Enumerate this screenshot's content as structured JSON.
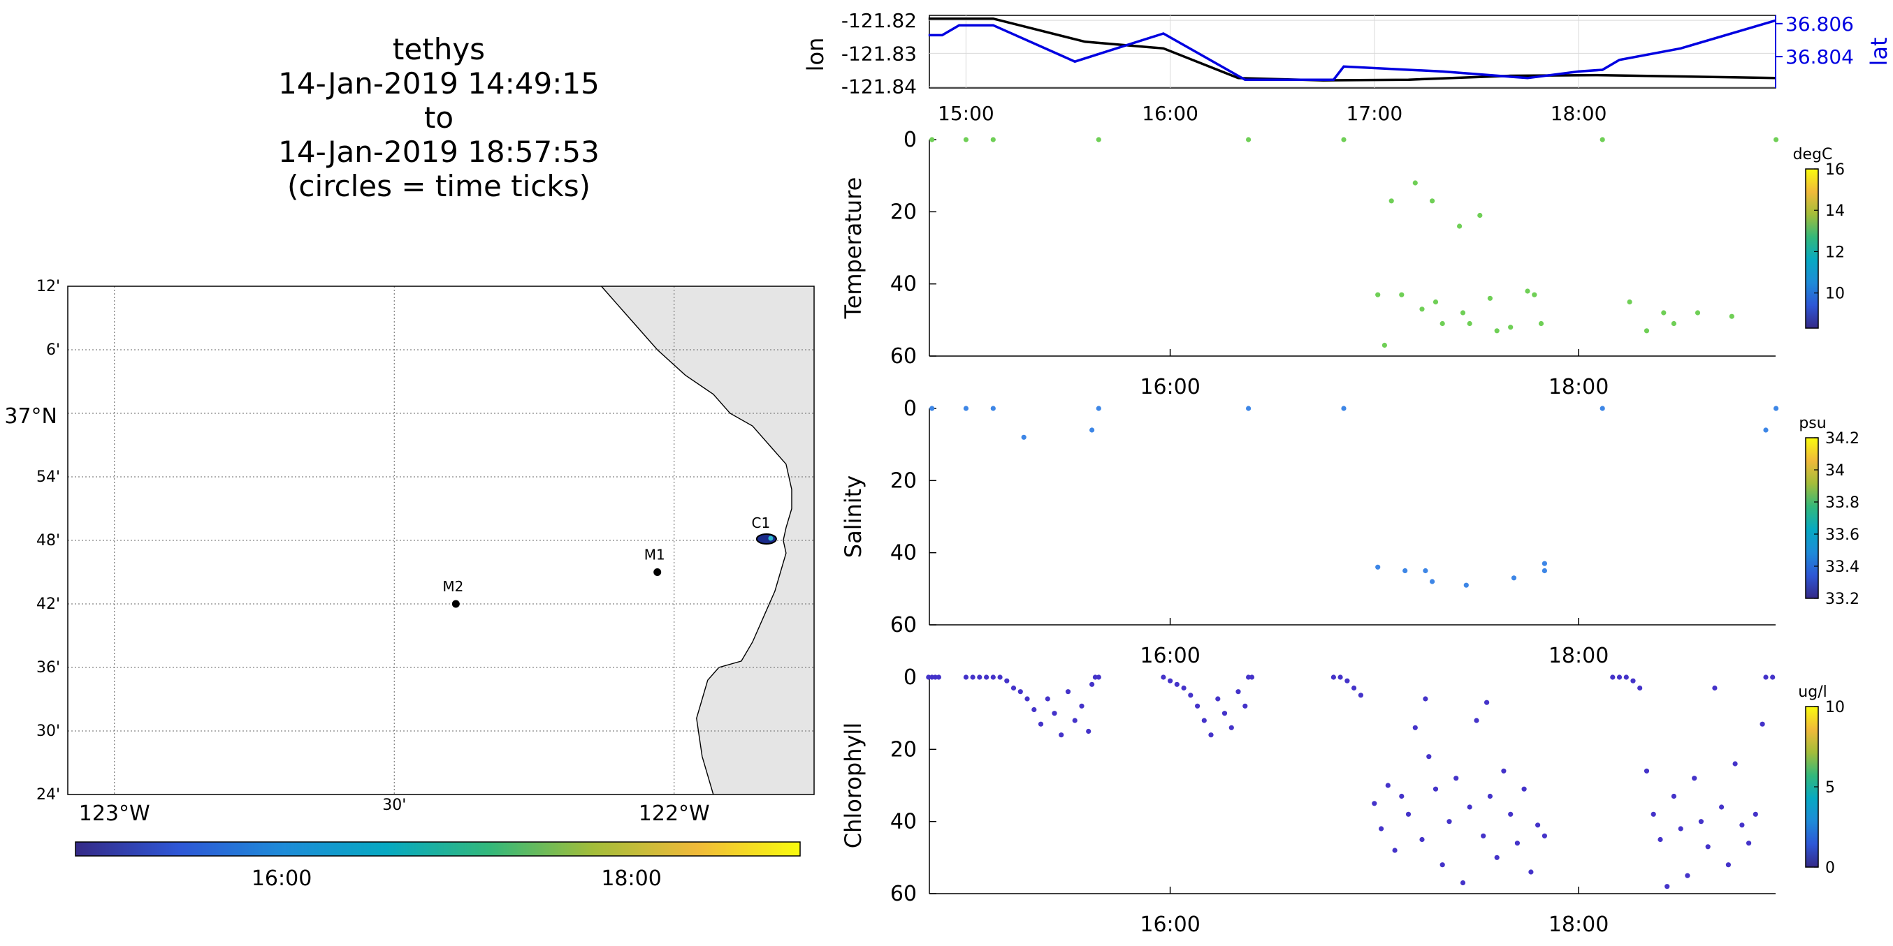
{
  "title_lines": [
    "tethys",
    "14-Jan-2019 14:49:15",
    "to",
    "14-Jan-2019 18:57:53",
    "(circles = time ticks)"
  ],
  "colors": {
    "track_lon": "#000000",
    "track_lat": "#0000e0",
    "temperature_pts": "#6fcf56",
    "salinity_pts": "#3d86e6",
    "chlorophyll_pts": "#4433c9",
    "land": "#e5e5e5",
    "parula": [
      "#352a87",
      "#2e57d6",
      "#1e8bd8",
      "#07a9c2",
      "#33b87b",
      "#a3bd3a",
      "#f0ba3a",
      "#f9fb0e"
    ]
  },
  "map": {
    "lat_labels": [
      "12'",
      "6'",
      "37°N",
      "54'",
      "48'",
      "42'",
      "36'",
      "30'",
      "24'"
    ],
    "lon_labels": [
      "123°W",
      "30'",
      "122°W"
    ],
    "stations": [
      {
        "name": "M2",
        "lon": -122.39,
        "lat": 36.7
      },
      {
        "name": "M1",
        "lon": -122.03,
        "lat": 36.75
      },
      {
        "name": "C1",
        "lon": -121.84,
        "lat": 36.8
      }
    ],
    "time_colorbar_ticks": [
      "16:00",
      "18:00"
    ]
  },
  "chart_data": [
    {
      "type": "line",
      "title": "",
      "xlabel": "",
      "ylabel": "lon",
      "ylabel_right": "lat",
      "x_ticks": [
        "15:00",
        "16:00",
        "17:00",
        "18:00"
      ],
      "xlim": [
        "14:49:15",
        "18:57:53"
      ],
      "ylim": [
        -121.8405,
        -121.8185
      ],
      "y_ticks": [
        -121.82,
        -121.83,
        -121.84
      ],
      "y2lim": [
        36.8021,
        36.8065
      ],
      "y2_ticks": [
        36.806,
        36.804
      ],
      "series": [
        {
          "name": "lon",
          "axis": "left",
          "x": [
            "14:49",
            "15:08",
            "15:35",
            "15:58",
            "16:20",
            "16:45",
            "17:10",
            "17:40",
            "18:05",
            "18:30",
            "18:58"
          ],
          "y": [
            -121.8195,
            -121.8195,
            -121.8265,
            -121.8285,
            -121.8375,
            -121.8382,
            -121.838,
            -121.8368,
            -121.8366,
            -121.837,
            -121.8375
          ]
        },
        {
          "name": "lat",
          "axis": "right",
          "x": [
            "14:49",
            "14:53",
            "14:58",
            "15:08",
            "15:32",
            "15:58",
            "16:22",
            "16:30",
            "16:40",
            "16:48",
            "16:51",
            "17:20",
            "17:45",
            "18:00",
            "18:07",
            "18:12",
            "18:30",
            "18:58"
          ],
          "y": [
            36.8053,
            36.8053,
            36.8059,
            36.8059,
            36.8037,
            36.8054,
            36.8026,
            36.8026,
            36.8026,
            36.8026,
            36.8034,
            36.8031,
            36.8027,
            36.8031,
            36.8032,
            36.8038,
            36.8045,
            36.8062
          ]
        }
      ]
    },
    {
      "type": "scatter",
      "title": "",
      "ylabel": "Temperature",
      "units": "degC",
      "xlabel": "",
      "x_ticks": [
        "16:00",
        "18:00"
      ],
      "xlim": [
        "14:49:15",
        "18:57:53"
      ],
      "ylim": [
        60,
        0
      ],
      "y_ticks": [
        0,
        20,
        40,
        60
      ],
      "colorbar_ticks": [
        16,
        14,
        12,
        10
      ],
      "points": [
        {
          "x": "14:50",
          "y": 0
        },
        {
          "x": "15:00",
          "y": 0
        },
        {
          "x": "15:08",
          "y": 0
        },
        {
          "x": "15:39",
          "y": 0
        },
        {
          "x": "16:23",
          "y": 0
        },
        {
          "x": "16:51",
          "y": 0
        },
        {
          "x": "18:07",
          "y": 0
        },
        {
          "x": "18:58",
          "y": 0
        },
        {
          "x": "17:05",
          "y": 17
        },
        {
          "x": "17:12",
          "y": 12
        },
        {
          "x": "17:17",
          "y": 17
        },
        {
          "x": "17:25",
          "y": 24
        },
        {
          "x": "17:31",
          "y": 21
        },
        {
          "x": "17:01",
          "y": 43
        },
        {
          "x": "17:08",
          "y": 43
        },
        {
          "x": "17:14",
          "y": 47
        },
        {
          "x": "17:18",
          "y": 45
        },
        {
          "x": "17:20",
          "y": 51
        },
        {
          "x": "17:26",
          "y": 48
        },
        {
          "x": "17:28",
          "y": 51
        },
        {
          "x": "17:34",
          "y": 44
        },
        {
          "x": "17:36",
          "y": 53
        },
        {
          "x": "17:40",
          "y": 52
        },
        {
          "x": "17:45",
          "y": 42
        },
        {
          "x": "17:47",
          "y": 43
        },
        {
          "x": "17:49",
          "y": 51
        },
        {
          "x": "17:03",
          "y": 57
        },
        {
          "x": "18:15",
          "y": 45
        },
        {
          "x": "18:20",
          "y": 53
        },
        {
          "x": "18:25",
          "y": 48
        },
        {
          "x": "18:28",
          "y": 51
        },
        {
          "x": "18:35",
          "y": 48
        },
        {
          "x": "18:45",
          "y": 49
        }
      ]
    },
    {
      "type": "scatter",
      "title": "",
      "ylabel": "Salinity",
      "units": "psu",
      "xlabel": "",
      "x_ticks": [
        "16:00",
        "18:00"
      ],
      "xlim": [
        "14:49:15",
        "18:57:53"
      ],
      "ylim": [
        60,
        0
      ],
      "y_ticks": [
        0,
        20,
        40,
        60
      ],
      "colorbar_ticks": [
        34.2,
        34,
        33.8,
        33.6,
        33.4,
        33.2
      ],
      "points": [
        {
          "x": "14:50",
          "y": 0
        },
        {
          "x": "15:00",
          "y": 0
        },
        {
          "x": "15:08",
          "y": 0
        },
        {
          "x": "15:39",
          "y": 0
        },
        {
          "x": "16:23",
          "y": 0
        },
        {
          "x": "16:51",
          "y": 0
        },
        {
          "x": "18:07",
          "y": 0
        },
        {
          "x": "18:58",
          "y": 0
        },
        {
          "x": "15:17",
          "y": 8
        },
        {
          "x": "15:37",
          "y": 6
        },
        {
          "x": "18:55",
          "y": 6
        },
        {
          "x": "17:01",
          "y": 44
        },
        {
          "x": "17:09",
          "y": 45
        },
        {
          "x": "17:15",
          "y": 45
        },
        {
          "x": "17:17",
          "y": 48
        },
        {
          "x": "17:27",
          "y": 49
        },
        {
          "x": "17:41",
          "y": 47
        },
        {
          "x": "17:50",
          "y": 43
        },
        {
          "x": "17:50",
          "y": 45
        }
      ]
    },
    {
      "type": "scatter",
      "title": "",
      "ylabel": "Chlorophyll",
      "units": "ug/l",
      "xlabel": "",
      "x_ticks": [
        "16:00",
        "18:00"
      ],
      "xlim": [
        "14:49:15",
        "18:57:53"
      ],
      "ylim": [
        60,
        0
      ],
      "y_ticks": [
        0,
        20,
        40,
        60
      ],
      "colorbar_ticks": [
        10,
        5,
        0
      ],
      "points": [
        {
          "x": "14:49",
          "y": 0
        },
        {
          "x": "14:50",
          "y": 0
        },
        {
          "x": "14:51",
          "y": 0
        },
        {
          "x": "14:52",
          "y": 0
        },
        {
          "x": "15:00",
          "y": 0
        },
        {
          "x": "15:02",
          "y": 0
        },
        {
          "x": "15:04",
          "y": 0
        },
        {
          "x": "15:06",
          "y": 0
        },
        {
          "x": "15:08",
          "y": 0
        },
        {
          "x": "15:10",
          "y": 0
        },
        {
          "x": "15:12",
          "y": 1
        },
        {
          "x": "15:14",
          "y": 3
        },
        {
          "x": "15:16",
          "y": 4
        },
        {
          "x": "15:18",
          "y": 6
        },
        {
          "x": "15:20",
          "y": 9
        },
        {
          "x": "15:22",
          "y": 13
        },
        {
          "x": "15:24",
          "y": 6
        },
        {
          "x": "15:26",
          "y": 10
        },
        {
          "x": "15:28",
          "y": 16
        },
        {
          "x": "15:30",
          "y": 4
        },
        {
          "x": "15:32",
          "y": 12
        },
        {
          "x": "15:34",
          "y": 8
        },
        {
          "x": "15:36",
          "y": 15
        },
        {
          "x": "15:37",
          "y": 2
        },
        {
          "x": "15:38",
          "y": 0
        },
        {
          "x": "15:39",
          "y": 0
        },
        {
          "x": "15:58",
          "y": 0
        },
        {
          "x": "16:00",
          "y": 1
        },
        {
          "x": "16:02",
          "y": 2
        },
        {
          "x": "16:04",
          "y": 3
        },
        {
          "x": "16:06",
          "y": 5
        },
        {
          "x": "16:08",
          "y": 8
        },
        {
          "x": "16:10",
          "y": 12
        },
        {
          "x": "16:12",
          "y": 16
        },
        {
          "x": "16:14",
          "y": 6
        },
        {
          "x": "16:16",
          "y": 10
        },
        {
          "x": "16:18",
          "y": 14
        },
        {
          "x": "16:20",
          "y": 4
        },
        {
          "x": "16:22",
          "y": 8
        },
        {
          "x": "16:23",
          "y": 0
        },
        {
          "x": "16:24",
          "y": 0
        },
        {
          "x": "16:48",
          "y": 0
        },
        {
          "x": "16:50",
          "y": 0
        },
        {
          "x": "16:52",
          "y": 1
        },
        {
          "x": "16:54",
          "y": 3
        },
        {
          "x": "16:56",
          "y": 5
        },
        {
          "x": "17:00",
          "y": 35
        },
        {
          "x": "17:02",
          "y": 42
        },
        {
          "x": "17:04",
          "y": 30
        },
        {
          "x": "17:06",
          "y": 48
        },
        {
          "x": "17:08",
          "y": 33
        },
        {
          "x": "17:10",
          "y": 38
        },
        {
          "x": "17:12",
          "y": 14
        },
        {
          "x": "17:14",
          "y": 45
        },
        {
          "x": "17:16",
          "y": 22
        },
        {
          "x": "17:18",
          "y": 31
        },
        {
          "x": "17:20",
          "y": 52
        },
        {
          "x": "17:22",
          "y": 40
        },
        {
          "x": "17:24",
          "y": 28
        },
        {
          "x": "17:26",
          "y": 57
        },
        {
          "x": "17:28",
          "y": 36
        },
        {
          "x": "17:30",
          "y": 12
        },
        {
          "x": "17:32",
          "y": 44
        },
        {
          "x": "17:34",
          "y": 33
        },
        {
          "x": "17:36",
          "y": 50
        },
        {
          "x": "17:38",
          "y": 26
        },
        {
          "x": "17:40",
          "y": 38
        },
        {
          "x": "17:42",
          "y": 46
        },
        {
          "x": "17:44",
          "y": 31
        },
        {
          "x": "17:46",
          "y": 54
        },
        {
          "x": "17:48",
          "y": 41
        },
        {
          "x": "17:50",
          "y": 44
        },
        {
          "x": "17:15",
          "y": 6
        },
        {
          "x": "17:33",
          "y": 7
        },
        {
          "x": "18:10",
          "y": 0
        },
        {
          "x": "18:12",
          "y": 0
        },
        {
          "x": "18:14",
          "y": 0
        },
        {
          "x": "18:16",
          "y": 1
        },
        {
          "x": "18:18",
          "y": 3
        },
        {
          "x": "18:20",
          "y": 26
        },
        {
          "x": "18:22",
          "y": 38
        },
        {
          "x": "18:24",
          "y": 45
        },
        {
          "x": "18:26",
          "y": 58
        },
        {
          "x": "18:28",
          "y": 33
        },
        {
          "x": "18:30",
          "y": 42
        },
        {
          "x": "18:32",
          "y": 55
        },
        {
          "x": "18:34",
          "y": 28
        },
        {
          "x": "18:36",
          "y": 40
        },
        {
          "x": "18:38",
          "y": 47
        },
        {
          "x": "18:40",
          "y": 3
        },
        {
          "x": "18:42",
          "y": 36
        },
        {
          "x": "18:44",
          "y": 52
        },
        {
          "x": "18:46",
          "y": 24
        },
        {
          "x": "18:48",
          "y": 41
        },
        {
          "x": "18:50",
          "y": 46
        },
        {
          "x": "18:52",
          "y": 38
        },
        {
          "x": "18:54",
          "y": 13
        },
        {
          "x": "18:55",
          "y": 0
        },
        {
          "x": "18:57",
          "y": 0
        }
      ]
    }
  ]
}
